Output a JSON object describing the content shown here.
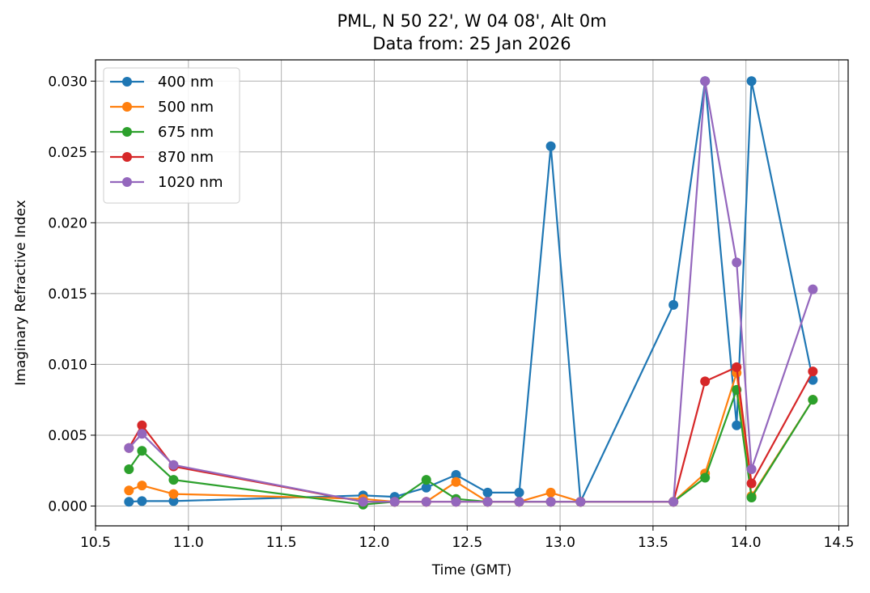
{
  "chart_data": {
    "type": "line",
    "title": "PML, N 50 22', W 04 08', Alt 0m",
    "subtitle": "Data from: 25 Jan 2026",
    "xlabel": "Time (GMT)",
    "ylabel": "Imaginary Refractive Index",
    "xlim": [
      10.5,
      14.55
    ],
    "ylim": [
      -0.0014,
      0.0315
    ],
    "xticks": [
      10.5,
      11.0,
      11.5,
      12.0,
      12.5,
      13.0,
      13.5,
      14.0,
      14.5
    ],
    "xtick_labels": [
      "10.5",
      "11.0",
      "11.5",
      "12.0",
      "12.5",
      "13.0",
      "13.5",
      "14.0",
      "14.5"
    ],
    "yticks": [
      0.0,
      0.005,
      0.01,
      0.015,
      0.02,
      0.025,
      0.03
    ],
    "ytick_labels": [
      "0.000",
      "0.005",
      "0.010",
      "0.015",
      "0.020",
      "0.025",
      "0.030"
    ],
    "grid": true,
    "legend_position": "upper-left",
    "x": [
      10.68,
      10.75,
      10.92,
      11.94,
      12.11,
      12.28,
      12.44,
      12.61,
      12.78,
      12.95,
      13.11,
      13.61,
      13.78,
      13.95,
      14.03,
      14.36
    ],
    "series": [
      {
        "name": "400 nm",
        "color": "#1f77b4",
        "values": [
          0.0003,
          0.00035,
          0.00035,
          0.00075,
          0.00065,
          0.0013,
          0.0022,
          0.00095,
          0.00095,
          0.0254,
          0.0003,
          0.0142,
          0.03,
          0.0057,
          0.03,
          0.0089
        ]
      },
      {
        "name": "500 nm",
        "color": "#ff7f0e",
        "values": [
          0.0011,
          0.00145,
          0.00085,
          0.0005,
          0.0003,
          0.0003,
          0.0017,
          0.0003,
          0.0003,
          0.00095,
          0.0003,
          0.0003,
          0.0023,
          0.0094,
          0.0007,
          0.0075
        ]
      },
      {
        "name": "675 nm",
        "color": "#2ca02c",
        "values": [
          0.0026,
          0.0039,
          0.00185,
          0.0001,
          0.0003,
          0.00185,
          0.0005,
          0.0003,
          0.0003,
          0.0003,
          0.0003,
          0.0003,
          0.002,
          0.0082,
          0.0006,
          0.0075
        ]
      },
      {
        "name": "870 nm",
        "color": "#d62728",
        "values": [
          0.0041,
          0.0057,
          0.0028,
          0.0003,
          0.0003,
          0.0003,
          0.0003,
          0.0003,
          0.0003,
          0.0003,
          0.0003,
          0.0003,
          0.0088,
          0.0098,
          0.0016,
          0.0095
        ]
      },
      {
        "name": "1020 nm",
        "color": "#9467bd",
        "values": [
          0.0041,
          0.0051,
          0.0029,
          0.0003,
          0.0003,
          0.0003,
          0.0003,
          0.0003,
          0.0003,
          0.0003,
          0.0003,
          0.0003,
          0.03,
          0.0172,
          0.0026,
          0.0153
        ]
      }
    ]
  }
}
